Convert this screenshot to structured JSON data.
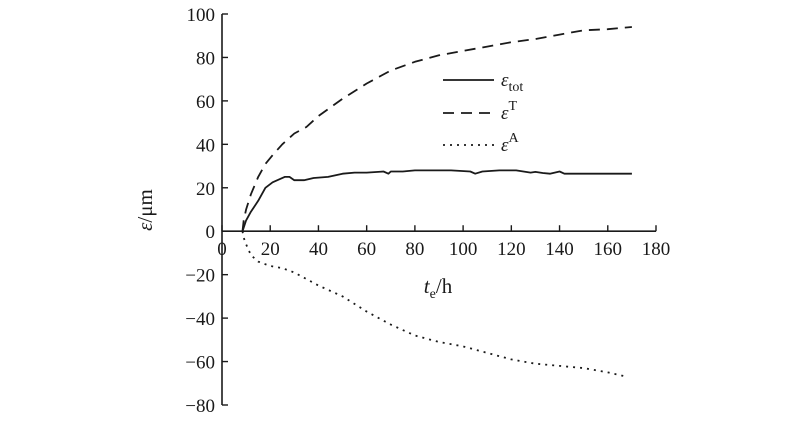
{
  "chart_data": {
    "type": "line",
    "xlabel": {
      "main": "t",
      "sub": "e",
      "unit": "/h"
    },
    "ylabel": {
      "main": "ε",
      "unit": "/μm"
    },
    "xlim": [
      0,
      180
    ],
    "ylim": [
      -80,
      100
    ],
    "xticks": [
      0,
      20,
      40,
      60,
      80,
      100,
      120,
      140,
      160,
      180
    ],
    "yticks": [
      -80,
      -60,
      -40,
      -20,
      0,
      20,
      40,
      60,
      80,
      100
    ],
    "legend_position": "upper-right",
    "series": [
      {
        "name": "ε_tot",
        "legend_main": "ε",
        "legend_sub": "tot",
        "legend_sup": "",
        "style": "solid",
        "color": "#1a1a1a",
        "points": [
          [
            8.5,
            0
          ],
          [
            10,
            5
          ],
          [
            12,
            9
          ],
          [
            15,
            14
          ],
          [
            18,
            20
          ],
          [
            21,
            22.5
          ],
          [
            24,
            24
          ],
          [
            26,
            25
          ],
          [
            28,
            25
          ],
          [
            30,
            23.5
          ],
          [
            34,
            23.5
          ],
          [
            38,
            24.5
          ],
          [
            44,
            25
          ],
          [
            50,
            26.5
          ],
          [
            55,
            27
          ],
          [
            60,
            27
          ],
          [
            67,
            27.5
          ],
          [
            69,
            26.5
          ],
          [
            70,
            27.5
          ],
          [
            75,
            27.5
          ],
          [
            80,
            28
          ],
          [
            88,
            28
          ],
          [
            95,
            28
          ],
          [
            103,
            27.5
          ],
          [
            105,
            26.5
          ],
          [
            108,
            27.5
          ],
          [
            115,
            28
          ],
          [
            122,
            28
          ],
          [
            128,
            27
          ],
          [
            130,
            27.3
          ],
          [
            133,
            26.8
          ],
          [
            136,
            26.5
          ],
          [
            140,
            27.5
          ],
          [
            142,
            26.5
          ],
          [
            150,
            26.5
          ],
          [
            160,
            26.5
          ],
          [
            170,
            26.5
          ]
        ]
      },
      {
        "name": "ε^T",
        "legend_main": "ε",
        "legend_sub": "",
        "legend_sup": "T",
        "style": "dashed",
        "color": "#1a1a1a",
        "points": [
          [
            8.5,
            0
          ],
          [
            9,
            5
          ],
          [
            10,
            10
          ],
          [
            12,
            17
          ],
          [
            15,
            25
          ],
          [
            18,
            31
          ],
          [
            21,
            35
          ],
          [
            25,
            40
          ],
          [
            30,
            45
          ],
          [
            35,
            48
          ],
          [
            40,
            53
          ],
          [
            50,
            61
          ],
          [
            60,
            68
          ],
          [
            70,
            74
          ],
          [
            80,
            78
          ],
          [
            90,
            81
          ],
          [
            100,
            83
          ],
          [
            110,
            85
          ],
          [
            120,
            87
          ],
          [
            130,
            88.5
          ],
          [
            140,
            90.5
          ],
          [
            150,
            92.5
          ],
          [
            160,
            93
          ],
          [
            170,
            94
          ]
        ]
      },
      {
        "name": "ε^A",
        "legend_main": "ε",
        "legend_sub": "",
        "legend_sup": "A",
        "style": "dotted",
        "color": "#1a1a1a",
        "points": [
          [
            8.5,
            0
          ],
          [
            9,
            -3
          ],
          [
            10,
            -6
          ],
          [
            12,
            -11
          ],
          [
            15,
            -14
          ],
          [
            20,
            -16
          ],
          [
            25,
            -17
          ],
          [
            30,
            -19
          ],
          [
            40,
            -25
          ],
          [
            50,
            -30
          ],
          [
            60,
            -37
          ],
          [
            70,
            -43
          ],
          [
            80,
            -48
          ],
          [
            90,
            -51
          ],
          [
            100,
            -53
          ],
          [
            110,
            -56
          ],
          [
            120,
            -59
          ],
          [
            130,
            -61
          ],
          [
            140,
            -62
          ],
          [
            150,
            -63
          ],
          [
            160,
            -65
          ],
          [
            168,
            -67
          ]
        ]
      }
    ]
  }
}
